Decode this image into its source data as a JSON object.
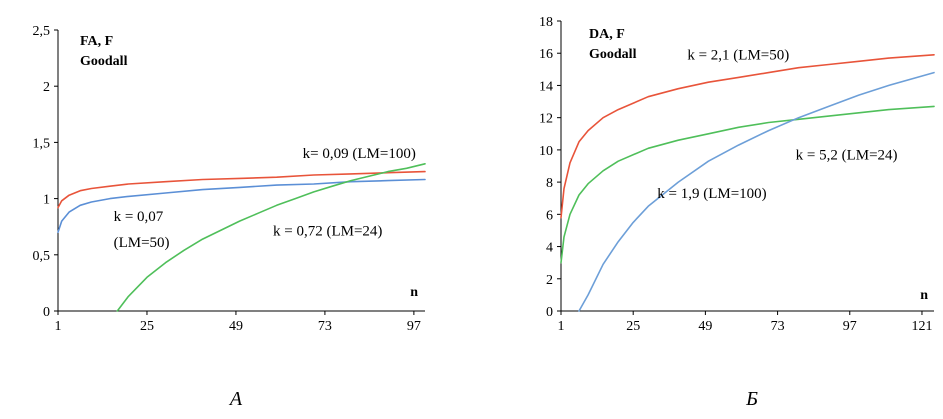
{
  "chart_data": [
    {
      "type": "line",
      "panel_label": "A",
      "title_line1": "FA, F",
      "title_line2": "Goodall",
      "xlabel": "n",
      "ylabel": "",
      "xlim": [
        1,
        100
      ],
      "ylim": [
        0,
        2.5
      ],
      "x_ticks": [
        1,
        25,
        49,
        73,
        97
      ],
      "x_tick_labels": [
        "1",
        "25",
        "49",
        "73",
        "97"
      ],
      "y_ticks": [
        0,
        0.5,
        1,
        1.5,
        2,
        2.5
      ],
      "y_tick_labels": [
        "0",
        "0,5",
        "1",
        "1,5",
        "2",
        "2,5"
      ],
      "grid": false,
      "legend": "none",
      "series": [
        {
          "name": "k= 0,09 (LM=100)",
          "color": "#e8543a",
          "x": [
            1,
            2,
            4,
            7,
            10,
            15,
            20,
            30,
            40,
            50,
            60,
            70,
            80,
            90,
            100
          ],
          "y": [
            0.92,
            0.98,
            1.03,
            1.07,
            1.09,
            1.11,
            1.13,
            1.15,
            1.17,
            1.18,
            1.19,
            1.21,
            1.22,
            1.23,
            1.24
          ]
        },
        {
          "name": "k = 0,07 (LM=50)",
          "color": "#5b8fd6",
          "x": [
            1,
            2,
            4,
            7,
            10,
            15,
            20,
            30,
            40,
            50,
            60,
            70,
            80,
            90,
            100
          ],
          "y": [
            0.7,
            0.8,
            0.88,
            0.94,
            0.97,
            1.0,
            1.02,
            1.05,
            1.08,
            1.1,
            1.12,
            1.13,
            1.15,
            1.16,
            1.17
          ]
        },
        {
          "name": "k = 0,72 (LM=24)",
          "color": "#4fbf5a",
          "x": [
            17,
            20,
            25,
            30,
            35,
            40,
            45,
            50,
            55,
            60,
            65,
            70,
            75,
            80,
            85,
            90,
            95,
            100
          ],
          "y": [
            0.0,
            0.13,
            0.3,
            0.43,
            0.54,
            0.64,
            0.72,
            0.8,
            0.87,
            0.94,
            1.0,
            1.06,
            1.11,
            1.16,
            1.2,
            1.24,
            1.27,
            1.31
          ]
        }
      ],
      "annotations": [
        {
          "text": "k= 0,09 (LM=100)",
          "at": [
            67,
            1.36
          ]
        },
        {
          "text": "k = 0,07",
          "at": [
            16,
            0.8
          ]
        },
        {
          "text": "(LM=50)",
          "at": [
            16,
            0.57
          ]
        },
        {
          "text": "k = 0,72 (LM=24)",
          "at": [
            59,
            0.67
          ]
        }
      ]
    },
    {
      "type": "line",
      "panel_label": "Б",
      "title_line1": "DA, F",
      "title_line2": "Goodall",
      "xlabel": "n",
      "ylabel": "",
      "xlim": [
        1,
        125
      ],
      "ylim": [
        0,
        18
      ],
      "x_ticks": [
        1,
        25,
        49,
        73,
        97,
        121
      ],
      "x_tick_labels": [
        "1",
        "25",
        "49",
        "73",
        "97",
        "121"
      ],
      "y_ticks": [
        0,
        2,
        4,
        6,
        8,
        10,
        12,
        14,
        16,
        18
      ],
      "y_tick_labels": [
        "0",
        "2",
        "4",
        "6",
        "8",
        "10",
        "12",
        "14",
        "16",
        "18"
      ],
      "grid": false,
      "legend": "none",
      "series": [
        {
          "name": "k = 2,1 (LM=50)",
          "color": "#e8543a",
          "x": [
            1,
            2,
            4,
            7,
            10,
            15,
            20,
            30,
            40,
            50,
            60,
            70,
            80,
            90,
            100,
            110,
            125
          ],
          "y": [
            5.8,
            7.6,
            9.2,
            10.5,
            11.2,
            12.0,
            12.5,
            13.3,
            13.8,
            14.2,
            14.5,
            14.8,
            15.1,
            15.3,
            15.5,
            15.7,
            15.9
          ]
        },
        {
          "name": "k = 5,2 (LM=24)",
          "color": "#4fbf5a",
          "x": [
            1,
            2,
            4,
            7,
            10,
            15,
            20,
            30,
            40,
            50,
            60,
            70,
            80,
            90,
            100,
            110,
            125
          ],
          "y": [
            3.0,
            4.6,
            6.0,
            7.2,
            7.9,
            8.7,
            9.3,
            10.1,
            10.6,
            11.0,
            11.4,
            11.7,
            11.9,
            12.1,
            12.3,
            12.5,
            12.7
          ]
        },
        {
          "name": "k = 1,9 (LM=100)",
          "color": "#6d9fd8",
          "x": [
            7,
            10,
            15,
            20,
            25,
            30,
            40,
            50,
            60,
            70,
            80,
            90,
            100,
            110,
            125
          ],
          "y": [
            0.0,
            1.0,
            2.9,
            4.3,
            5.5,
            6.5,
            8.0,
            9.3,
            10.3,
            11.2,
            12.0,
            12.7,
            13.4,
            14.0,
            14.8
          ]
        }
      ],
      "annotations": [
        {
          "text": "k = 2,1 (LM=50)",
          "at": [
            43,
            15.6
          ]
        },
        {
          "text": "k = 5,2 (LM=24)",
          "at": [
            79,
            9.4
          ]
        },
        {
          "text": "k = 1,9 (LM=100)",
          "at": [
            33,
            7.0
          ]
        }
      ]
    }
  ]
}
